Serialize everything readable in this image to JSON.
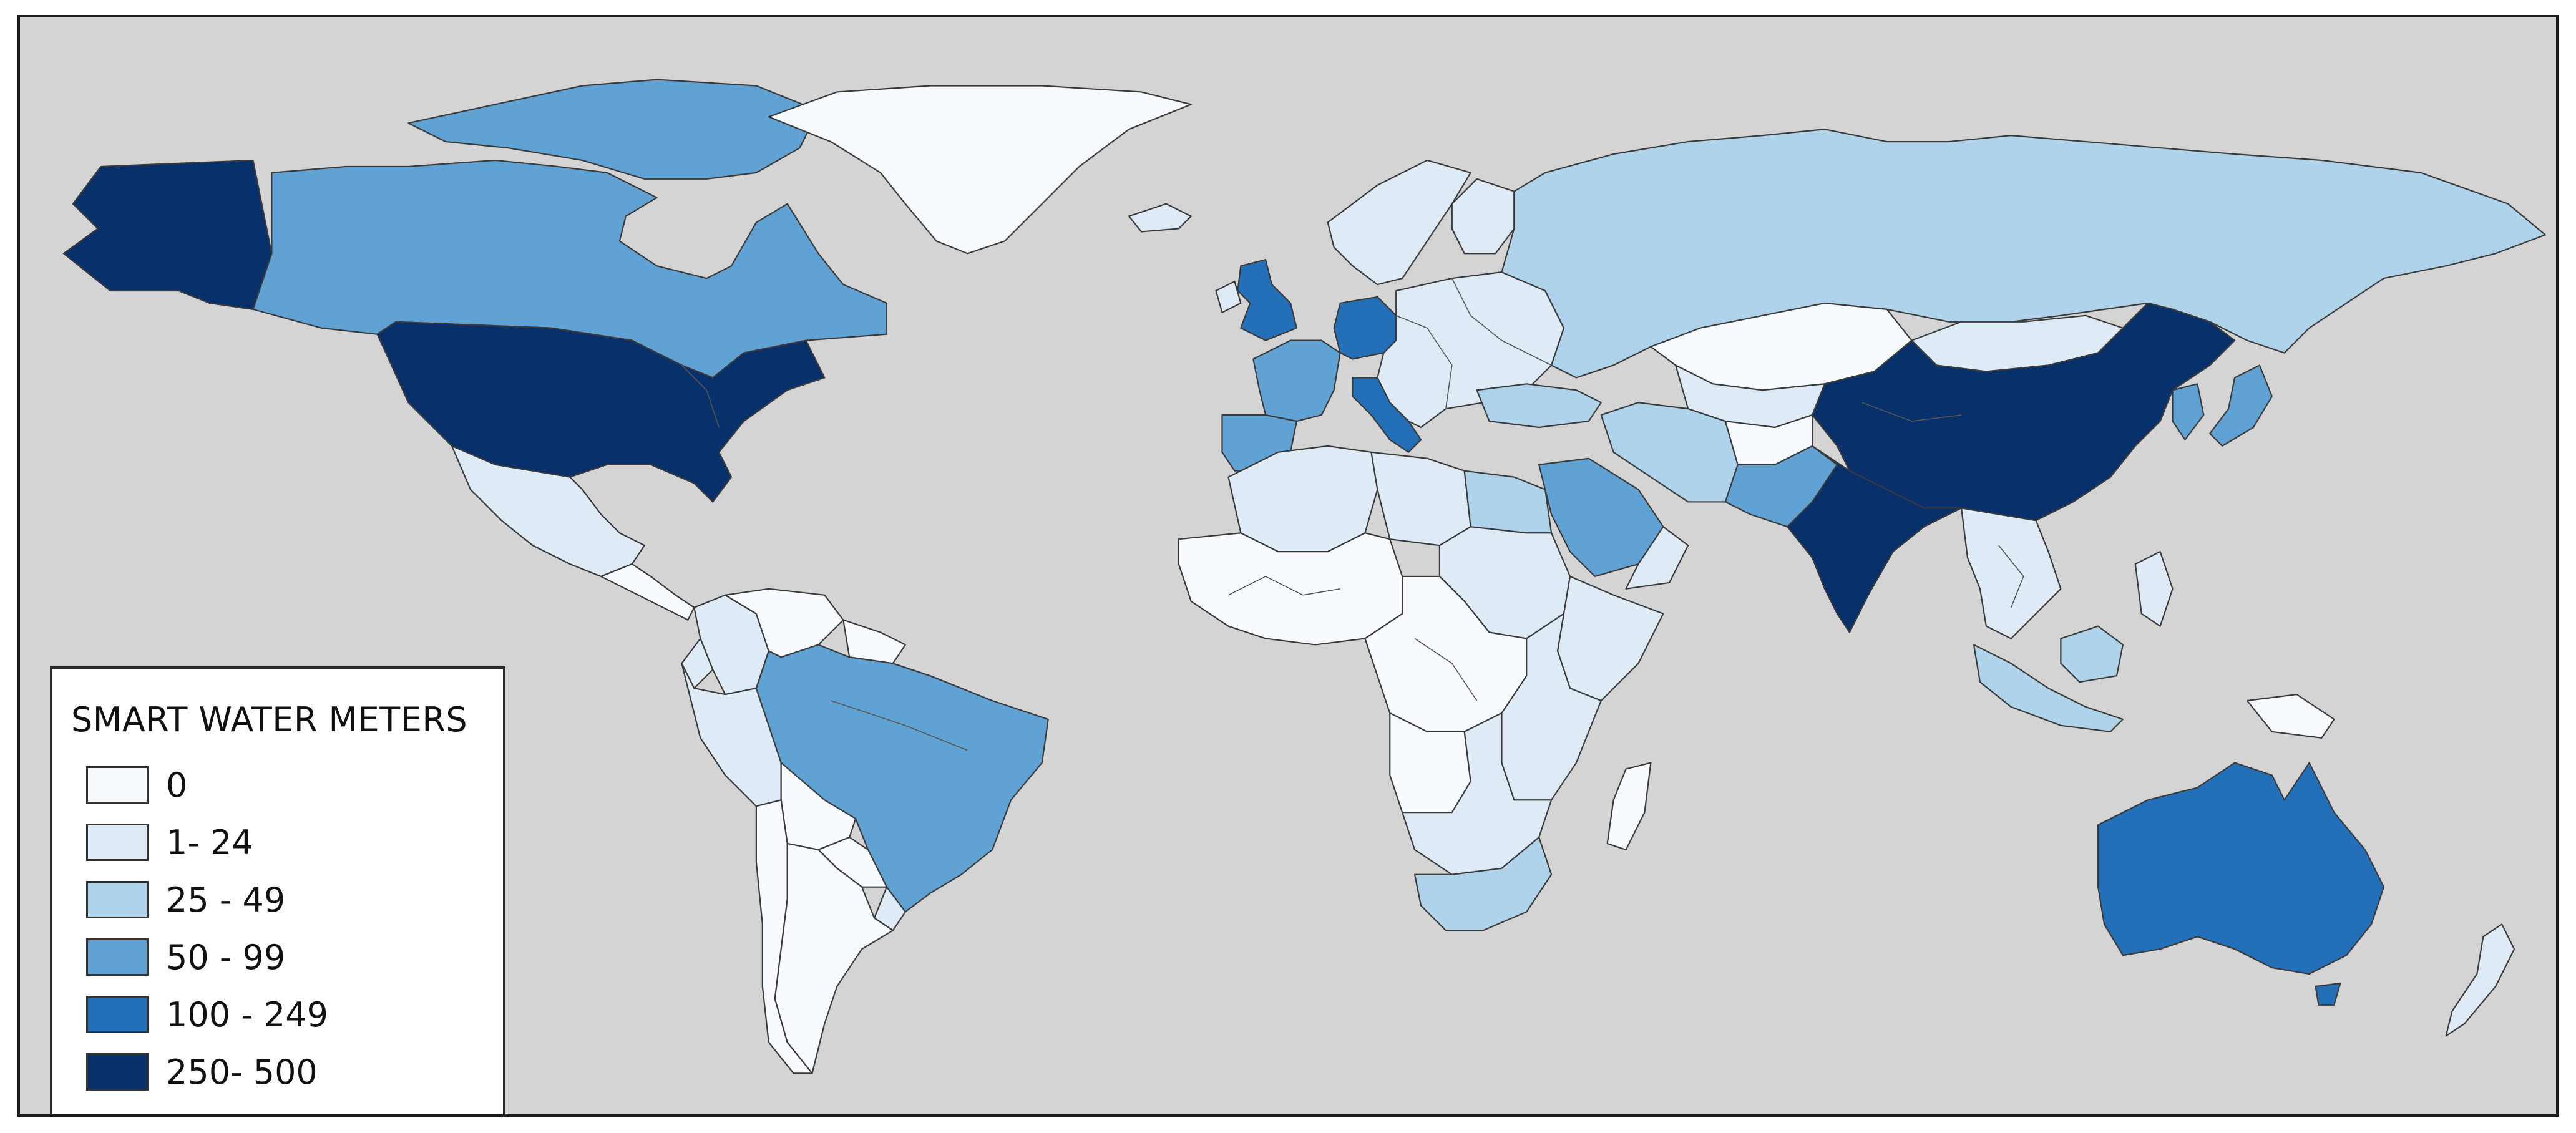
{
  "map": {
    "legend": {
      "title": "SMART WATER METERS",
      "classes": [
        {
          "label": "0",
          "color": "#f7fbff"
        },
        {
          "label": "1- 24",
          "color": "#deebf7"
        },
        {
          "label": "25 - 49",
          "color": "#aed3ea"
        },
        {
          "label": "50 - 99",
          "color": "#5fa2d3"
        },
        {
          "label": "100 - 249",
          "color": "#2470b8"
        },
        {
          "label": "250- 500",
          "color": "#08306b"
        }
      ]
    },
    "colors": {
      "ocean": "#d4d4d4",
      "country_border": "#3a3a3a"
    },
    "regions": [
      {
        "name": "Alaska",
        "class": 5
      },
      {
        "name": "Canada",
        "class": 3
      },
      {
        "name": "Greenland",
        "class": 0
      },
      {
        "name": "United States",
        "class": 5
      },
      {
        "name": "Mexico",
        "class": 1
      },
      {
        "name": "Central America",
        "class": 0
      },
      {
        "name": "Colombia",
        "class": 1
      },
      {
        "name": "Venezuela",
        "class": 0
      },
      {
        "name": "Guianas",
        "class": 0
      },
      {
        "name": "Peru",
        "class": 1
      },
      {
        "name": "Ecuador",
        "class": 1
      },
      {
        "name": "Bolivia",
        "class": 0
      },
      {
        "name": "Brazil",
        "class": 3
      },
      {
        "name": "Uruguay",
        "class": 1
      },
      {
        "name": "Paraguay",
        "class": 0
      },
      {
        "name": "Chile",
        "class": 0
      },
      {
        "name": "Argentina",
        "class": 0
      },
      {
        "name": "Iceland",
        "class": 1
      },
      {
        "name": "United Kingdom",
        "class": 4
      },
      {
        "name": "Ireland",
        "class": 1
      },
      {
        "name": "Scandinavia",
        "class": 1
      },
      {
        "name": "Finland",
        "class": 1
      },
      {
        "name": "France",
        "class": 3
      },
      {
        "name": "Iberia",
        "class": 3
      },
      {
        "name": "Germany",
        "class": 4
      },
      {
        "name": "Italy",
        "class": 4
      },
      {
        "name": "Eastern Europe",
        "class": 1
      },
      {
        "name": "Russia",
        "class": 2
      },
      {
        "name": "Turkey",
        "class": 2
      },
      {
        "name": "Kazakhstan",
        "class": 0
      },
      {
        "name": "Central Asia",
        "class": 1
      },
      {
        "name": "Iran",
        "class": 2
      },
      {
        "name": "Afghanistan",
        "class": 0
      },
      {
        "name": "Pakistan",
        "class": 3
      },
      {
        "name": "Saudi Arabia",
        "class": 3
      },
      {
        "name": "Arabian Peninsula",
        "class": 1
      },
      {
        "name": "Mongolia",
        "class": 1
      },
      {
        "name": "China",
        "class": 5
      },
      {
        "name": "India",
        "class": 5
      },
      {
        "name": "Southeast Asia",
        "class": 1
      },
      {
        "name": "Korea",
        "class": 3
      },
      {
        "name": "Japan",
        "class": 3
      },
      {
        "name": "Indonesia",
        "class": 2
      },
      {
        "name": "Philippines",
        "class": 1
      },
      {
        "name": "Papua New Guinea",
        "class": 0
      },
      {
        "name": "Australia",
        "class": 4
      },
      {
        "name": "Tasmania",
        "class": 4
      },
      {
        "name": "New Zealand",
        "class": 1
      },
      {
        "name": "Maghreb",
        "class": 1
      },
      {
        "name": "Libya",
        "class": 1
      },
      {
        "name": "Egypt",
        "class": 2
      },
      {
        "name": "West Africa",
        "class": 0
      },
      {
        "name": "Sudan",
        "class": 1
      },
      {
        "name": "Horn of Africa",
        "class": 1
      },
      {
        "name": "Central Africa",
        "class": 0
      },
      {
        "name": "East Africa",
        "class": 1
      },
      {
        "name": "Angola",
        "class": 0
      },
      {
        "name": "Southern Africa",
        "class": 1
      },
      {
        "name": "South Africa",
        "class": 2
      },
      {
        "name": "Madagascar",
        "class": 0
      }
    ]
  }
}
